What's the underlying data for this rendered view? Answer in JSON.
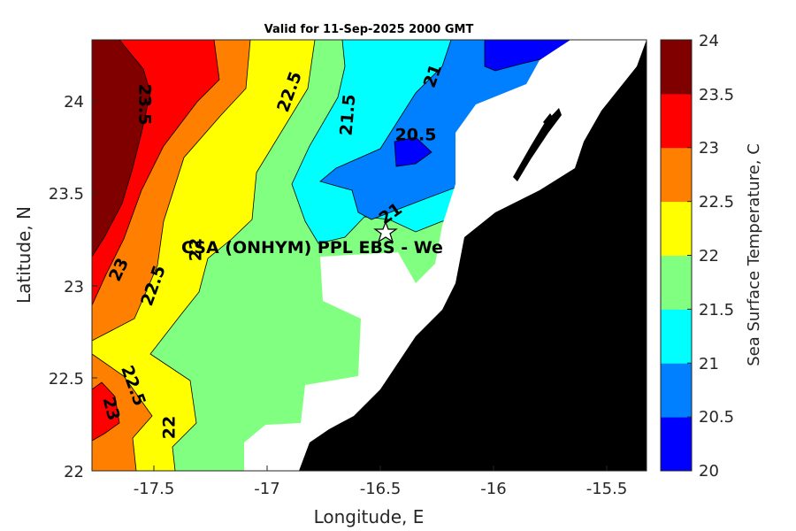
{
  "title": "Valid for 11-Sep-2025 2000 GMT",
  "map": {
    "xlabel": "Longitude, E",
    "ylabel": "Latitude, N",
    "xlim": [
      -17.8,
      -15.35
    ],
    "ylim": [
      22.0,
      24.33
    ],
    "xticks": [
      "-17.5",
      "-17",
      "-16.5",
      "-16",
      "-15.5"
    ],
    "yticks": [
      "22",
      "22.5",
      "23",
      "23.5",
      "24"
    ],
    "site_label": "CSA (ONHYM) PPL EBS  - We",
    "contour_labels": [
      {
        "text": "23.5",
        "rot": 90
      },
      {
        "text": "22.5",
        "rot": -70
      },
      {
        "text": "21.5",
        "rot": -85
      },
      {
        "text": "21",
        "rot": -70
      },
      {
        "text": "20.5",
        "rot": 0
      },
      {
        "text": "21",
        "rot": -35
      },
      {
        "text": "23",
        "rot": -65
      },
      {
        "text": "22.5",
        "rot": -70
      },
      {
        "text": "22",
        "rot": -90
      },
      {
        "text": "22.5",
        "rot": 70
      },
      {
        "text": "23",
        "rot": 75
      },
      {
        "text": "22",
        "rot": -90
      }
    ],
    "land_color": "#000000"
  },
  "colorbar": {
    "label": "Sea Surface Temperature, C",
    "ticks": [
      "20",
      "20.5",
      "21",
      "21.5",
      "22",
      "22.5",
      "23",
      "23.5",
      "24"
    ],
    "levels": [
      20,
      20.5,
      21,
      21.5,
      22,
      22.5,
      23,
      23.5,
      24
    ],
    "colors": [
      "#0000ff",
      "#0080ff",
      "#00ffff",
      "#80ff80",
      "#ffff00",
      "#ff8000",
      "#ff0000",
      "#800000"
    ]
  }
}
